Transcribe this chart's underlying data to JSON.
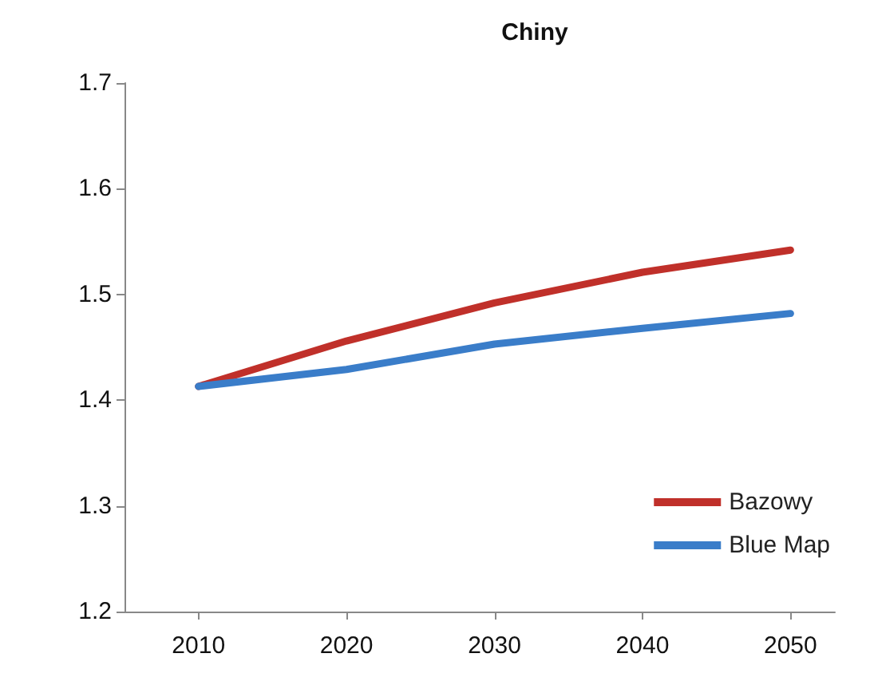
{
  "chart_data": {
    "type": "line",
    "title": "Chiny",
    "x": [
      2010,
      2020,
      2030,
      2040,
      2050
    ],
    "series": [
      {
        "name": "Bazowy",
        "color": "#c0302a",
        "values": [
          1.413,
          1.456,
          1.492,
          1.521,
          1.542
        ]
      },
      {
        "name": "Blue Map",
        "color": "#3a7dc9",
        "values": [
          1.413,
          1.429,
          1.453,
          1.468,
          1.482
        ]
      }
    ],
    "xlim": [
      2005,
      2053
    ],
    "xticks": [
      2010,
      2020,
      2030,
      2040,
      2050
    ],
    "ylim": [
      1.2,
      1.7
    ],
    "yticks": [
      1.2,
      1.3,
      1.4,
      1.5,
      1.6,
      1.7
    ],
    "grid": false,
    "legend": "bottom right",
    "marker": "none",
    "line_style": "solid"
  }
}
